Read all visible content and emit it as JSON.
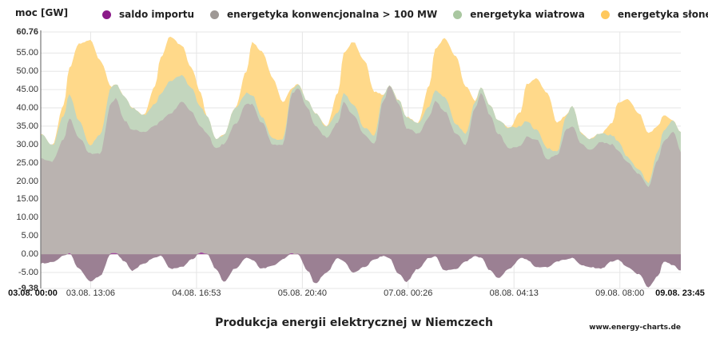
{
  "chart_data": {
    "type": "area",
    "stacked": true,
    "title": "Produkcja energii elektrycznej w Niemczech",
    "source": "www.energy-charts.de",
    "ylabel": "moc [GW]",
    "xlabel": "",
    "ylim": [
      -9.38,
      60.76
    ],
    "y_ticks": [
      "60.76",
      "55.00",
      "50.00",
      "45.00",
      "40.00",
      "35.00",
      "30.00",
      "25.00",
      "20.00",
      "15.00",
      "10.00",
      "5.00",
      "0.00",
      "-5.00",
      "-9.38"
    ],
    "y_tick_values": [
      60.76,
      55,
      50,
      45,
      40,
      35,
      30,
      25,
      20,
      15,
      10,
      5,
      0,
      -5,
      -9.38
    ],
    "x_ticks": [
      "03.08. 00:00",
      "03.08. 13:06",
      "04.08. 16:53",
      "05.08. 20:40",
      "07.08. 00:26",
      "08.08. 04:13",
      "09.08. 08:00",
      "09.08. 23:45"
    ],
    "x_tick_hours": [
      0,
      13.1,
      40.883,
      68.667,
      96.433,
      124.217,
      152,
      167.75
    ],
    "x_range_hours": [
      0,
      168
    ],
    "grid": true,
    "legend_position": "top",
    "legend": [
      {
        "name": "saldo importu",
        "color": "#8B1A89"
      },
      {
        "name": "energetyka konwencjonalna > 100 MW",
        "color": "#9E9895"
      },
      {
        "name": "energetyka wiatrowa",
        "color": "#A9C7A0"
      },
      {
        "name": "energetyka słoneczna",
        "color": "#FFC85C"
      }
    ],
    "fill_colors": {
      "import_negative": "#9B8093",
      "import_positive": "#A14AA0",
      "conventional": "#BAB3B0",
      "wind": "#C3D6BE",
      "solar": "#FFD98A"
    },
    "x_hours": [
      0,
      3,
      6,
      7.5,
      10,
      13,
      15.5,
      18.6,
      19.7,
      22,
      24,
      27,
      30,
      31.5,
      34,
      37,
      39.5,
      42,
      43.5,
      46,
      48,
      51,
      54,
      55.5,
      58,
      61,
      63.5,
      66,
      67.5,
      70,
      72,
      75,
      78,
      79.5,
      82,
      85,
      87.5,
      90,
      91.5,
      94,
      96,
      99,
      102,
      103.5,
      106,
      109,
      111.5,
      114,
      115.5,
      118,
      120,
      123,
      126,
      127.5,
      130,
      133,
      135.5,
      138,
      139.5,
      142,
      144,
      147,
      150,
      151.5,
      154,
      157,
      159.5,
      162,
      163.5,
      166,
      168
    ],
    "series": [
      {
        "name": "energetyka konwencjonalna > 100 MW (top, GW)",
        "values": [
          26.2,
          25.4,
          31.3,
          37.2,
          31.9,
          27.5,
          27.5,
          41.5,
          42.6,
          36.5,
          34.0,
          33.5,
          35.0,
          36.5,
          38.5,
          41.5,
          39.0,
          35.0,
          33.0,
          29.0,
          30.0,
          35.5,
          41.0,
          41.0,
          36.0,
          30.0,
          30.0,
          44.0,
          45.5,
          40.0,
          35.0,
          32.0,
          36.0,
          41.5,
          38.0,
          32.5,
          30.0,
          42.0,
          46.0,
          41.0,
          34.5,
          33.0,
          37.5,
          42.0,
          39.0,
          33.0,
          30.0,
          40.0,
          44.0,
          38.0,
          33.0,
          29.0,
          29.5,
          32.0,
          31.5,
          26.0,
          27.0,
          34.0,
          35.0,
          30.0,
          28.5,
          30.5,
          30.0,
          28.5,
          25.0,
          22.0,
          18.5,
          26.0,
          31.0,
          33.5,
          28.0
        ]
      },
      {
        "name": "energetyka wiatrowa (cumulative top, GW)",
        "values": [
          32.8,
          29.7,
          37.8,
          43.7,
          36.7,
          29.7,
          32.8,
          45.9,
          46.5,
          43.0,
          40.0,
          38.0,
          41.0,
          44.0,
          47.5,
          49.0,
          45.5,
          40.0,
          38.0,
          31.5,
          32.5,
          40.0,
          44.0,
          43.5,
          37.5,
          31.5,
          31.5,
          45.0,
          46.5,
          42.0,
          38.5,
          35.0,
          38.5,
          44.0,
          41.0,
          34.5,
          32.5,
          43.5,
          46.0,
          42.0,
          37.5,
          36.0,
          40.5,
          45.0,
          43.0,
          35.5,
          33.0,
          41.5,
          45.5,
          40.5,
          36.5,
          34.5,
          35.0,
          36.5,
          34.0,
          29.0,
          28.0,
          38.0,
          40.5,
          33.0,
          31.5,
          33.0,
          32.5,
          31.0,
          26.5,
          23.0,
          19.5,
          28.0,
          34.0,
          36.5,
          33.5
        ]
      },
      {
        "name": "energetyka słoneczna (cumulative top, GW)",
        "values": [
          32.8,
          29.7,
          40.7,
          51.0,
          57.5,
          58.6,
          53.0,
          45.9,
          46.5,
          43.0,
          40.0,
          38.0,
          46.0,
          54.0,
          59.5,
          57.0,
          51.0,
          44.0,
          38.0,
          31.5,
          32.5,
          40.0,
          50.0,
          58.0,
          55.5,
          48.0,
          41.5,
          45.5,
          46.5,
          42.0,
          38.5,
          35.0,
          44.0,
          55.0,
          58.0,
          53.0,
          44.5,
          43.5,
          46.0,
          42.0,
          37.5,
          36.0,
          46.0,
          56.0,
          59.0,
          54.0,
          46.0,
          42.0,
          45.5,
          40.5,
          36.5,
          34.5,
          39.0,
          46.5,
          48.0,
          44.0,
          36.0,
          38.0,
          40.5,
          33.0,
          31.5,
          33.0,
          36.0,
          41.5,
          42.5,
          38.5,
          33.0,
          35.0,
          38.0,
          36.5,
          33.5
        ]
      },
      {
        "name": "saldo importu (GW)",
        "values": [
          -2.5,
          -2.2,
          -0.5,
          0.3,
          -4.0,
          -7.5,
          -6.0,
          0.3,
          0.2,
          -2.0,
          -4.5,
          -2.5,
          -1.0,
          -0.5,
          -4.0,
          -3.5,
          -1.5,
          0.4,
          0.2,
          -4.0,
          -7.5,
          -4.0,
          -1.0,
          -1.5,
          -4.0,
          -3.0,
          -1.5,
          0.2,
          0.0,
          -4.5,
          -8.0,
          -5.0,
          -1.0,
          -2.0,
          -5.0,
          -3.5,
          -1.5,
          -0.5,
          -1.0,
          -5.5,
          -7.5,
          -4.0,
          -1.0,
          -0.5,
          -4.5,
          -4.0,
          -2.0,
          -0.5,
          -1.0,
          -4.5,
          -6.5,
          -4.0,
          -1.0,
          -1.5,
          -3.5,
          -3.5,
          -2.0,
          -1.5,
          -1.0,
          -3.0,
          -3.5,
          -4.0,
          -2.0,
          -1.5,
          -3.5,
          -5.5,
          -9.0,
          -6.0,
          -2.0,
          -3.0,
          -4.5
        ]
      }
    ]
  },
  "header": {
    "y_unit_label": "moc [GW]"
  },
  "legend": {
    "items": [
      {
        "label": "saldo importu",
        "color": "#8B1A89"
      },
      {
        "label": "energetyka konwencjonalna > 100 MW",
        "color": "#9E9895"
      },
      {
        "label": "energetyka wiatrowa",
        "color": "#A9C7A0"
      },
      {
        "label": "energetyka słoneczna",
        "color": "#FFC85C"
      }
    ]
  },
  "footer": {
    "title": "Produkcja energii elektrycznej w Niemczech",
    "source": "www.energy-charts.de"
  }
}
